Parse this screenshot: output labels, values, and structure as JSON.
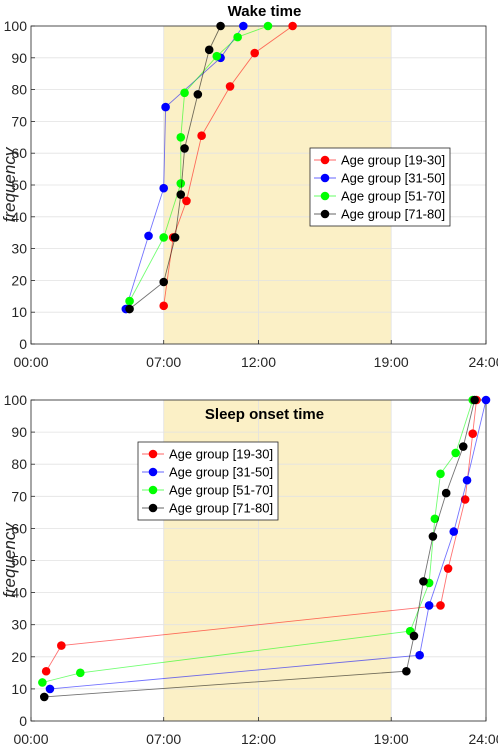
{
  "chart_data": [
    {
      "type": "line",
      "title": "Wake time",
      "ylabel": "frequency",
      "xlabel": "",
      "xlim": [
        0,
        24
      ],
      "ylim": [
        0,
        100
      ],
      "xticks": [
        0,
        7,
        12,
        19,
        24
      ],
      "xtick_labels": [
        "00:00",
        "07:00",
        "12:00",
        "19:00",
        "24:00"
      ],
      "yticks": [
        0,
        10,
        20,
        30,
        40,
        50,
        60,
        70,
        80,
        90,
        100
      ],
      "ytick_labels": [
        "0",
        "10",
        "20",
        "30",
        "40",
        "50",
        "60",
        "70",
        "80",
        "90",
        "100"
      ],
      "grid": true,
      "shaded_region": [
        7,
        19
      ],
      "legend_position": "center-right",
      "series": [
        {
          "name": "Age group [19-30]",
          "color": "#ff0000",
          "points": [
            [
              7.0,
              12
            ],
            [
              7.5,
              33.5
            ],
            [
              8.2,
              45
            ],
            [
              9.0,
              65.5
            ],
            [
              10.5,
              81
            ],
            [
              11.8,
              91.5
            ],
            [
              13.8,
              100
            ]
          ]
        },
        {
          "name": "Age group [31-50]",
          "color": "#0000ff",
          "points": [
            [
              5.0,
              11
            ],
            [
              6.2,
              34
            ],
            [
              7.0,
              49
            ],
            [
              7.1,
              74.5
            ],
            [
              10.0,
              90
            ],
            [
              11.2,
              100
            ]
          ]
        },
        {
          "name": "Age group [51-70]",
          "color": "#00ff00",
          "points": [
            [
              5.2,
              13.5
            ],
            [
              7.0,
              33.5
            ],
            [
              7.9,
              50.5
            ],
            [
              7.9,
              65
            ],
            [
              8.1,
              79
            ],
            [
              9.8,
              90.5
            ],
            [
              10.9,
              96.5
            ],
            [
              12.5,
              100
            ]
          ]
        },
        {
          "name": "Age group [71-80]",
          "color": "#000000",
          "points": [
            [
              5.2,
              11
            ],
            [
              7.0,
              19.5
            ],
            [
              7.6,
              33.5
            ],
            [
              7.9,
              47
            ],
            [
              8.1,
              61.5
            ],
            [
              8.8,
              78.5
            ],
            [
              9.4,
              92.5
            ],
            [
              10.0,
              100
            ]
          ]
        }
      ]
    },
    {
      "type": "line",
      "title": "Sleep onset time",
      "ylabel": "frequency",
      "xlabel": "",
      "xlim": [
        0,
        24
      ],
      "ylim": [
        0,
        100
      ],
      "xticks": [
        0,
        7,
        12,
        19,
        24
      ],
      "xtick_labels": [
        "00:00",
        "07:00",
        "12:00",
        "19:00",
        "24:00"
      ],
      "yticks": [
        0,
        10,
        20,
        30,
        40,
        50,
        60,
        70,
        80,
        90,
        100
      ],
      "ytick_labels": [
        "0",
        "10",
        "20",
        "30",
        "40",
        "50",
        "60",
        "70",
        "80",
        "90",
        "100"
      ],
      "grid": true,
      "shaded_region": [
        7,
        19
      ],
      "legend_position": "top-left",
      "series": [
        {
          "name": "Age group [19-30]",
          "color": "#ff0000",
          "points": [
            [
              0.8,
              15.5
            ],
            [
              1.6,
              23.5
            ],
            [
              21.6,
              36
            ],
            [
              22.0,
              47.5
            ],
            [
              22.9,
              69
            ],
            [
              23.3,
              89.5
            ],
            [
              23.5,
              100
            ]
          ]
        },
        {
          "name": "Age group [31-50]",
          "color": "#0000ff",
          "points": [
            [
              1.0,
              10
            ],
            [
              20.5,
              20.5
            ],
            [
              21.0,
              36
            ],
            [
              22.3,
              59
            ],
            [
              23.0,
              75
            ],
            [
              24.0,
              100
            ]
          ]
        },
        {
          "name": "Age group [51-70]",
          "color": "#00ff00",
          "points": [
            [
              0.6,
              12
            ],
            [
              2.6,
              15
            ],
            [
              20.0,
              28
            ],
            [
              21.0,
              43
            ],
            [
              21.3,
              63
            ],
            [
              21.6,
              77
            ],
            [
              22.4,
              83.5
            ],
            [
              23.3,
              100
            ]
          ]
        },
        {
          "name": "Age group [71-80]",
          "color": "#000000",
          "points": [
            [
              0.7,
              7.5
            ],
            [
              19.8,
              15.5
            ],
            [
              20.2,
              26.5
            ],
            [
              20.7,
              43.5
            ],
            [
              21.2,
              57.5
            ],
            [
              21.9,
              71
            ],
            [
              22.8,
              85.5
            ],
            [
              23.4,
              100
            ]
          ]
        }
      ]
    }
  ]
}
